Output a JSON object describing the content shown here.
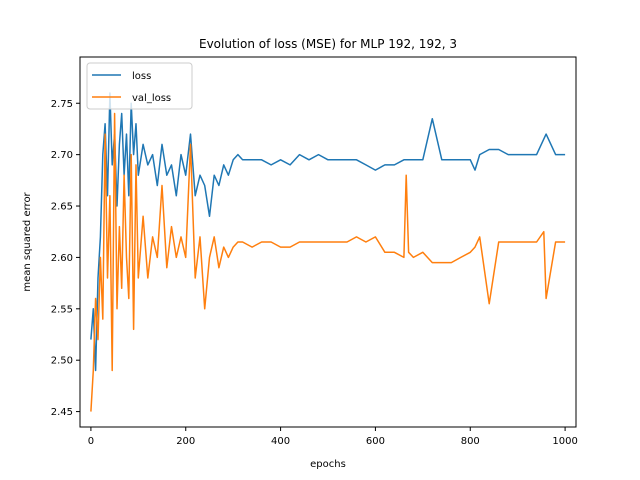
{
  "chart_data": {
    "type": "line",
    "title": "Evolution of loss (MSE) for MLP 192, 192, 3",
    "xlabel": "epochs",
    "ylabel": "mean squared error",
    "xlim": [
      -23,
      1023
    ],
    "ylim": [
      2.435,
      2.795
    ],
    "xticks": [
      0,
      200,
      400,
      600,
      800,
      1000
    ],
    "yticks": [
      2.45,
      2.5,
      2.55,
      2.6,
      2.65,
      2.7,
      2.75
    ],
    "legend": "upper-left",
    "grid": false,
    "series": [
      {
        "name": "loss",
        "color": "#1f77b4",
        "x": [
          0,
          5,
          10,
          15,
          20,
          25,
          30,
          35,
          40,
          45,
          50,
          55,
          60,
          65,
          70,
          75,
          80,
          85,
          90,
          95,
          100,
          110,
          120,
          130,
          140,
          150,
          160,
          170,
          180,
          190,
          200,
          210,
          220,
          230,
          240,
          250,
          260,
          270,
          280,
          290,
          300,
          310,
          320,
          340,
          360,
          380,
          400,
          420,
          440,
          460,
          480,
          500,
          520,
          540,
          560,
          580,
          600,
          620,
          640,
          660,
          680,
          700,
          720,
          740,
          760,
          780,
          800,
          810,
          820,
          840,
          860,
          880,
          900,
          920,
          940,
          960,
          980,
          1000
        ],
        "y": [
          2.52,
          2.55,
          2.49,
          2.58,
          2.62,
          2.7,
          2.73,
          2.66,
          2.76,
          2.69,
          2.72,
          2.65,
          2.71,
          2.74,
          2.68,
          2.72,
          2.66,
          2.75,
          2.7,
          2.73,
          2.68,
          2.71,
          2.69,
          2.7,
          2.67,
          2.71,
          2.68,
          2.69,
          2.66,
          2.7,
          2.68,
          2.72,
          2.66,
          2.68,
          2.67,
          2.64,
          2.68,
          2.67,
          2.69,
          2.68,
          2.695,
          2.7,
          2.695,
          2.695,
          2.695,
          2.69,
          2.695,
          2.69,
          2.7,
          2.695,
          2.7,
          2.695,
          2.695,
          2.695,
          2.695,
          2.69,
          2.685,
          2.69,
          2.69,
          2.695,
          2.695,
          2.695,
          2.735,
          2.695,
          2.695,
          2.695,
          2.695,
          2.685,
          2.7,
          2.705,
          2.705,
          2.7,
          2.7,
          2.7,
          2.7,
          2.72,
          2.7,
          2.7
        ]
      },
      {
        "name": "val_loss",
        "color": "#ff7f0e",
        "x": [
          0,
          5,
          10,
          15,
          20,
          25,
          30,
          35,
          40,
          45,
          50,
          55,
          60,
          65,
          70,
          75,
          80,
          85,
          90,
          95,
          100,
          110,
          120,
          130,
          140,
          150,
          160,
          170,
          180,
          190,
          200,
          210,
          220,
          230,
          240,
          250,
          260,
          270,
          280,
          290,
          300,
          310,
          320,
          340,
          360,
          380,
          400,
          420,
          440,
          460,
          480,
          500,
          520,
          540,
          560,
          580,
          600,
          620,
          640,
          660,
          665,
          670,
          680,
          700,
          720,
          740,
          760,
          780,
          800,
          810,
          820,
          840,
          860,
          880,
          900,
          920,
          940,
          955,
          960,
          980,
          1000
        ],
        "y": [
          2.45,
          2.49,
          2.56,
          2.52,
          2.6,
          2.54,
          2.72,
          2.58,
          2.66,
          2.49,
          2.74,
          2.55,
          2.63,
          2.57,
          2.68,
          2.6,
          2.56,
          2.7,
          2.53,
          2.69,
          2.58,
          2.64,
          2.58,
          2.62,
          2.6,
          2.67,
          2.59,
          2.63,
          2.6,
          2.62,
          2.6,
          2.71,
          2.58,
          2.62,
          2.55,
          2.6,
          2.62,
          2.59,
          2.61,
          2.6,
          2.61,
          2.615,
          2.615,
          2.61,
          2.615,
          2.615,
          2.61,
          2.61,
          2.615,
          2.615,
          2.615,
          2.615,
          2.615,
          2.615,
          2.62,
          2.615,
          2.62,
          2.605,
          2.605,
          2.6,
          2.68,
          2.605,
          2.6,
          2.605,
          2.595,
          2.595,
          2.595,
          2.6,
          2.605,
          2.61,
          2.62,
          2.555,
          2.615,
          2.615,
          2.615,
          2.615,
          2.615,
          2.625,
          2.56,
          2.615,
          2.615
        ]
      }
    ]
  }
}
